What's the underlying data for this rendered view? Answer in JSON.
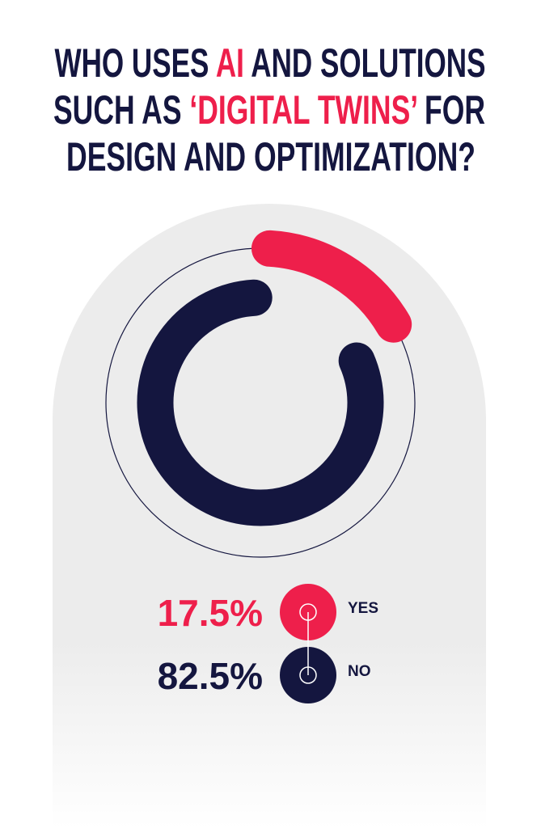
{
  "chart_data": {
    "type": "donut",
    "title": [
      [
        "WHO USES ",
        "AI",
        " AND SOLUTIONS"
      ],
      [
        "SUCH AS ",
        "‘DIGITAL TWINS’",
        " FOR"
      ],
      [
        "DESIGN AND OPTIMIZATION?"
      ]
    ],
    "categories": [
      "YES",
      "NO"
    ],
    "values": [
      17.5,
      82.5
    ],
    "value_labels": [
      "17.5%",
      "82.5%"
    ],
    "colors": [
      "#ee1f4b",
      "#14163f"
    ]
  }
}
